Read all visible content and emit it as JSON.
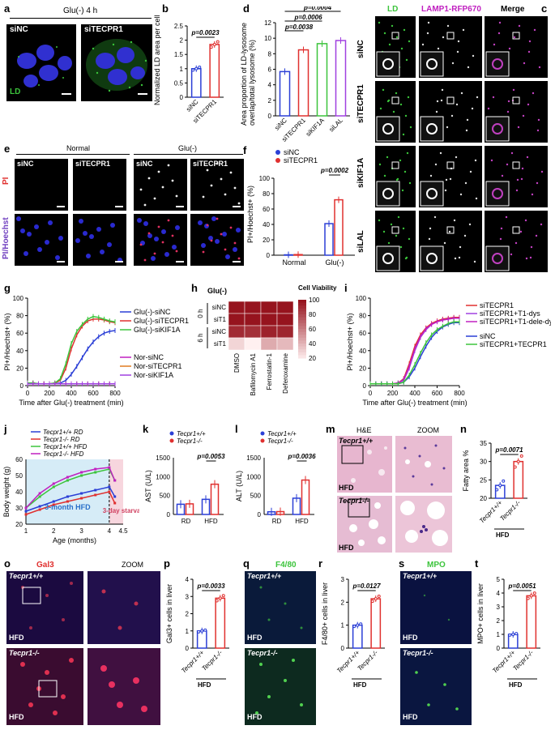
{
  "panels": {
    "a": {
      "label": "a",
      "condition": "Glu(-) 4 h",
      "images": [
        "siNC",
        "siTECPR1"
      ],
      "stain": "LD"
    },
    "b": {
      "label": "b",
      "ylabel": "Normalized LD area per cell",
      "pvalue": "p=0.0023",
      "groups": [
        "siNC",
        "siTECPR1"
      ]
    },
    "c": {
      "label": "c",
      "cols": [
        "LD",
        "LAMP1-RFP670",
        "Merge"
      ],
      "rows": [
        "siNC",
        "siTECPR1",
        "siKIF1A",
        "siLAL"
      ]
    },
    "d": {
      "label": "d",
      "ylabel": "Area proportion of LD-lysosome overlap/total lysosome (%)",
      "pvalues": [
        "p=0.0004",
        "p=0.0006",
        "p=0.0038"
      ],
      "groups": [
        "siNC",
        "siTECPR1",
        "siKIF1A",
        "siLAL"
      ]
    },
    "e": {
      "label": "e",
      "headers": [
        "Normal",
        "Glu(-)"
      ],
      "cols": [
        "siNC",
        "siTECPR1",
        "siNC",
        "siTECPR1"
      ],
      "rows": [
        "PI",
        "PI/Hoechst"
      ]
    },
    "f": {
      "label": "f",
      "ylabel": "PI+/Hoechst+ (%)",
      "legend": [
        "siNC",
        "siTECPR1"
      ],
      "pvalue": "p=0.0002",
      "xcats": [
        "Normal",
        "Glu(-)"
      ]
    },
    "g": {
      "label": "g",
      "ylabel": "PI+/Hoechst+ (%)",
      "xlabel": "Time after Glu(-) treatment (min)",
      "legend": [
        "Glu(-)-siNC",
        "Glu(-)-siTECPR1",
        "Glu(-)-siKIF1A",
        "Nor-siNC",
        "Nor-siTECPR1",
        "Nor-siKIF1A"
      ]
    },
    "h": {
      "label": "h",
      "title": "Glu(-)",
      "cbar_title": "Cell Viability (%)",
      "rows": [
        "siNC",
        "siT1",
        "siNC",
        "siT1"
      ],
      "times": [
        "0 h",
        "6 h"
      ],
      "cols": [
        "DMSO",
        "Bafilomycin A1",
        "Ferrostatin-1",
        "Deferoxamine"
      ],
      "cbar_ticks": [
        "100",
        "80",
        "60",
        "40",
        "20"
      ]
    },
    "i": {
      "label": "i",
      "ylabel": "PI+/Hoechst+ (%)",
      "xlabel": "Time after Glu(-) treatment (min)",
      "legend": [
        "siTECPR1",
        "siTECPR1+T1-dys",
        "siTECPR1+T1-dele-dys",
        "siNC",
        "siTECPR1+TECPR1"
      ]
    },
    "j": {
      "label": "j",
      "ylabel": "Body weight (g)",
      "xlabel": "Age (months)",
      "legend": [
        "Tecpr1+/+ RD",
        "Tecpr1-/- RD",
        "Tecpr1+/+ HFD",
        "Tecpr1-/- HFD"
      ],
      "note1": "3-month HFD",
      "note2": "3-day starvation"
    },
    "k": {
      "label": "k",
      "ylabel": "AST (U/L)",
      "legend": [
        "Tecpr1+/+",
        "Tecpr1-/-"
      ],
      "pvalue": "p=0.0053",
      "xcats": [
        "RD",
        "HFD"
      ]
    },
    "l": {
      "label": "l",
      "ylabel": "ALT (U/L)",
      "legend": [
        "Tecpr1+/+",
        "Tecpr1-/-"
      ],
      "pvalue": "p=0.0036",
      "xcats": [
        "RD",
        "HFD"
      ]
    },
    "m": {
      "label": "m",
      "cols": [
        "H&E",
        "ZOOM"
      ],
      "rows": [
        "Tecpr1+/+",
        "Tecpr1-/-"
      ],
      "diet": "HFD"
    },
    "n": {
      "label": "n",
      "ylabel": "Fatty area %",
      "pvalue": "p=0.0071",
      "groups": [
        "Tecpr1+/+",
        "Tecpr1-/-"
      ],
      "diet": "HFD"
    },
    "o": {
      "label": "o",
      "cols": [
        "Gal3",
        "ZOOM"
      ],
      "rows": [
        "Tecpr1+/+",
        "Tecpr1-/-"
      ],
      "diet": "HFD"
    },
    "p": {
      "label": "p",
      "ylabel": "Gal3+ cells in liver",
      "pvalue": "p=0.0033",
      "groups": [
        "Tecpr1+/+",
        "Tecpr1-/-"
      ],
      "diet": "HFD"
    },
    "q": {
      "label": "q",
      "title": "F4/80",
      "rows": [
        "Tecpr1+/+",
        "Tecpr1-/-"
      ],
      "diet": "HFD"
    },
    "r": {
      "label": "r",
      "ylabel": "F4/80+ cells in liver",
      "pvalue": "p=0.0127",
      "groups": [
        "Tecpr1+/+",
        "Tecpr1-/-"
      ],
      "diet": "HFD"
    },
    "s": {
      "label": "s",
      "title": "MPO",
      "rows": [
        "Tecpr1+/+",
        "Tecpr1-/-"
      ],
      "diet": "HFD"
    },
    "t": {
      "label": "t",
      "ylabel": "MPO+ cells in liver",
      "pvalue": "p=0.0051",
      "groups": [
        "Tecpr1+/+",
        "Tecpr1-/-"
      ],
      "diet": "HFD"
    }
  },
  "colors": {
    "blue": "#2b3fd6",
    "red": "#e0302f",
    "green": "#3cc43c",
    "magenta": "#c020c0",
    "orange": "#e07a20",
    "purple": "#a040e0"
  },
  "chart_data": [
    {
      "panel": "b",
      "type": "bar",
      "categories": [
        "siNC",
        "siTECPR1"
      ],
      "values": [
        1.0,
        1.85
      ],
      "ylim": [
        0,
        2.5
      ],
      "yticks": [
        0,
        0.5,
        1,
        1.5,
        2,
        2.5
      ]
    },
    {
      "panel": "d",
      "type": "bar",
      "categories": [
        "siNC",
        "siTECPR1",
        "siKIF1A",
        "siLAL"
      ],
      "values": [
        5.7,
        8.5,
        9.3,
        9.7
      ],
      "ylim": [
        0,
        12
      ],
      "yticks": [
        0,
        2,
        4,
        6,
        8,
        10,
        12
      ]
    },
    {
      "panel": "f",
      "type": "bar",
      "categories": [
        "Normal",
        "Glu(-)"
      ],
      "series": [
        {
          "name": "siNC",
          "values": [
            0.5,
            41
          ]
        },
        {
          "name": "siTECPR1",
          "values": [
            0.8,
            72
          ]
        }
      ],
      "ylim": [
        0,
        100
      ],
      "yticks": [
        0,
        20,
        40,
        60,
        80,
        100
      ]
    },
    {
      "panel": "g",
      "type": "line",
      "x": [
        0,
        50,
        100,
        150,
        200,
        250,
        300,
        350,
        400,
        450,
        500,
        550,
        600,
        650,
        700,
        750,
        800
      ],
      "series": [
        {
          "name": "Glu(-)-siNC",
          "values": [
            3,
            3,
            2,
            2,
            2,
            2,
            3,
            6,
            13,
            22,
            32,
            42,
            50,
            56,
            60,
            62,
            63
          ]
        },
        {
          "name": "Glu(-)-siTECPR1",
          "values": [
            3,
            3,
            2,
            2,
            2,
            3,
            6,
            20,
            42,
            58,
            68,
            74,
            76,
            76,
            75,
            73,
            72
          ]
        },
        {
          "name": "Glu(-)-siKIF1A",
          "values": [
            3,
            3,
            2,
            2,
            2,
            3,
            8,
            25,
            48,
            62,
            70,
            76,
            79,
            78,
            76,
            74,
            73
          ]
        },
        {
          "name": "Nor-siNC",
          "values": [
            2,
            2,
            2,
            2,
            2,
            2,
            2,
            2,
            2,
            2,
            2,
            2,
            2,
            2,
            2,
            2,
            2
          ]
        },
        {
          "name": "Nor-siTECPR1",
          "values": [
            2,
            2,
            2,
            2,
            2,
            2,
            2,
            2,
            2,
            2,
            2,
            2,
            2,
            2,
            2,
            2,
            2
          ]
        },
        {
          "name": "Nor-siKIF1A",
          "values": [
            2,
            2,
            2,
            2,
            2,
            2,
            2,
            2,
            2,
            2,
            2,
            2,
            2,
            2,
            2,
            2,
            2
          ]
        }
      ],
      "ylim": [
        0,
        100
      ],
      "xlim": [
        0,
        800
      ],
      "xticks": [
        0,
        200,
        400,
        600,
        800
      ],
      "yticks": [
        0,
        20,
        40,
        60,
        80,
        100
      ]
    },
    {
      "panel": "h",
      "type": "heatmap",
      "rows": [
        "0 h siNC",
        "0 h siT1",
        "6 h siNC",
        "6 h siT1"
      ],
      "cols": [
        "DMSO",
        "Bafilomycin A1",
        "Ferrostatin-1",
        "Deferoxamine"
      ],
      "values": [
        [
          100,
          100,
          100,
          100
        ],
        [
          100,
          100,
          100,
          100
        ],
        [
          92,
          90,
          95,
          94
        ],
        [
          30,
          20,
          45,
          40
        ]
      ],
      "range": [
        20,
        100
      ]
    },
    {
      "panel": "i",
      "type": "line",
      "x": [
        0,
        50,
        100,
        150,
        200,
        250,
        300,
        350,
        400,
        450,
        500,
        550,
        600,
        650,
        700,
        750,
        800
      ],
      "series": [
        {
          "name": "siTECPR1",
          "values": [
            2,
            2,
            2,
            2,
            2,
            3,
            8,
            25,
            45,
            58,
            66,
            71,
            74,
            76,
            77,
            78,
            78
          ]
        },
        {
          "name": "siTECPR1+T1-dys",
          "values": [
            2,
            2,
            2,
            2,
            2,
            3,
            6,
            20,
            40,
            55,
            64,
            70,
            73,
            75,
            76,
            77,
            77
          ]
        },
        {
          "name": "siTECPR1+T1-dele-dys",
          "values": [
            2,
            2,
            2,
            2,
            2,
            3,
            7,
            22,
            42,
            56,
            65,
            70,
            73,
            75,
            76,
            77,
            77
          ]
        },
        {
          "name": "siNC",
          "values": [
            2,
            2,
            2,
            2,
            2,
            2,
            4,
            10,
            20,
            33,
            45,
            55,
            62,
            67,
            70,
            72,
            72
          ]
        },
        {
          "name": "siTECPR1+TECPR1",
          "values": [
            2,
            2,
            2,
            2,
            2,
            2,
            4,
            12,
            24,
            37,
            49,
            58,
            64,
            68,
            71,
            73,
            73
          ]
        }
      ],
      "ylim": [
        0,
        100
      ],
      "xlim": [
        0,
        800
      ],
      "xticks": [
        0,
        200,
        400,
        600,
        800
      ],
      "yticks": [
        0,
        20,
        40,
        60,
        80,
        100
      ]
    },
    {
      "panel": "j",
      "type": "line",
      "x": [
        1,
        1.5,
        2,
        2.5,
        3,
        3.5,
        4,
        4.2
      ],
      "series": [
        {
          "name": "Tecpr1+/+ RD",
          "values": [
            28,
            31,
            34,
            37,
            39,
            41,
            43,
            37
          ]
        },
        {
          "name": "Tecpr1-/- RD",
          "values": [
            26,
            29,
            32,
            34,
            36,
            38,
            40,
            33
          ]
        },
        {
          "name": "Tecpr1+/+ HFD",
          "values": [
            30,
            37,
            43,
            47,
            50,
            52,
            54,
            47
          ]
        },
        {
          "name": "Tecpr1-/- HFD",
          "values": [
            30,
            39,
            45,
            49,
            52,
            54,
            55,
            47
          ]
        }
      ],
      "ylim": [
        20,
        60
      ],
      "xlim": [
        1,
        4.5
      ],
      "yticks": [
        20,
        30,
        40,
        50,
        60
      ],
      "xticks": [
        1,
        2,
        3,
        4,
        4.5
      ]
    },
    {
      "panel": "k",
      "type": "bar",
      "categories": [
        "RD",
        "HFD"
      ],
      "series": [
        {
          "name": "Tecpr1+/+",
          "values": [
            270,
            400
          ]
        },
        {
          "name": "Tecpr1-/-",
          "values": [
            280,
            800
          ]
        }
      ],
      "ylim": [
        0,
        1500
      ],
      "yticks": [
        0,
        500,
        1000,
        1500
      ]
    },
    {
      "panel": "l",
      "type": "bar",
      "categories": [
        "RD",
        "HFD"
      ],
      "series": [
        {
          "name": "Tecpr1+/+",
          "values": [
            70,
            430
          ]
        },
        {
          "name": "Tecpr1-/-",
          "values": [
            75,
            910
          ]
        }
      ],
      "ylim": [
        0,
        1500
      ],
      "yticks": [
        0,
        500,
        1000,
        1500
      ]
    },
    {
      "panel": "n",
      "type": "bar",
      "categories": [
        "Tecpr1+/+",
        "Tecpr1-/-"
      ],
      "values": [
        23.5,
        30
      ],
      "ylim": [
        20,
        35
      ],
      "yticks": [
        20,
        25,
        30,
        35
      ]
    },
    {
      "panel": "p",
      "type": "bar",
      "categories": [
        "Tecpr1+/+",
        "Tecpr1-/-"
      ],
      "values": [
        1,
        2.9
      ],
      "ylim": [
        0,
        4
      ],
      "yticks": [
        0,
        1,
        2,
        3,
        4
      ]
    },
    {
      "panel": "r",
      "type": "bar",
      "categories": [
        "Tecpr1+/+",
        "Tecpr1-/-"
      ],
      "values": [
        1,
        2.15
      ],
      "ylim": [
        0,
        3
      ],
      "yticks": [
        0,
        1,
        2,
        3
      ]
    },
    {
      "panel": "t",
      "type": "bar",
      "categories": [
        "Tecpr1+/+",
        "Tecpr1-/-"
      ],
      "values": [
        1,
        3.8
      ],
      "ylim": [
        0,
        5
      ],
      "yticks": [
        0,
        1,
        2,
        3,
        4,
        5
      ]
    }
  ]
}
